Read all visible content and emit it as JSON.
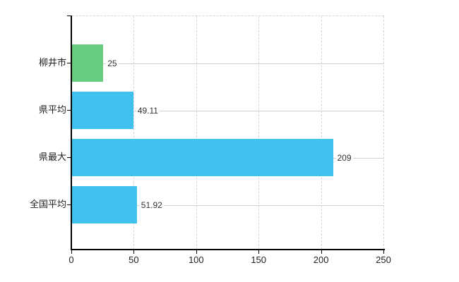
{
  "chart_data": {
    "type": "bar",
    "orientation": "horizontal",
    "title": "",
    "xlabel": "",
    "ylabel": "",
    "categories": [
      "柳井市",
      "県平均",
      "県最大",
      "全国平均"
    ],
    "values": [
      25,
      49.11,
      209,
      51.92
    ],
    "value_labels": [
      "25",
      "49.11",
      "209",
      "51.92"
    ],
    "bar_colors": [
      "#66cc7e",
      "#3fc1f0",
      "#3fc1f0",
      "#3fc1f0"
    ],
    "xlim": [
      0,
      250
    ],
    "x_ticks": [
      0,
      50,
      100,
      150,
      200,
      250
    ],
    "x_tick_labels": [
      "0",
      "50",
      "100",
      "150",
      "200",
      "250"
    ],
    "grid": "vertical dashed gridlines at 50-unit intervals; solid horizontal line at each category center; dashed top border",
    "legend_position": "none"
  },
  "colors": {
    "bar_blue": "#3fc1f0",
    "bar_green": "#66cc7e",
    "axis": "#000000",
    "vertical_gridline": "#d6d6da",
    "category_centerline": "#cdd4cd",
    "text": "#333333"
  }
}
